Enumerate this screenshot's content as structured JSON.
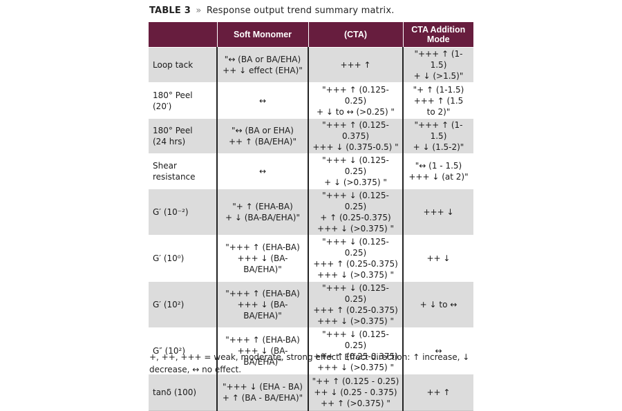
{
  "caption": {
    "label": "TABLE 3",
    "separator": "»",
    "text": "Response output trend summary matrix."
  },
  "table": {
    "headers": [
      "",
      "Soft Monomer",
      "(CTA)",
      "CTA Addition Mode"
    ],
    "rows": [
      {
        "label": "Loop tack",
        "soft_monomer": "\"↔ (BA or BA/EHA)\n++ ↓ effect (EHA)\"",
        "cta": "+++ ↑",
        "mode": "\"+++ ↑  (1-1.5)\n+ ↓ (>1.5)\""
      },
      {
        "label": "180° Peel (20′)",
        "soft_monomer": "↔",
        "cta": "\"+++  ↑ (0.125-0.25)\n+ ↓ to ↔ (>0.25) \"",
        "mode": "\"+ ↑ (1-1.5)\n+++ ↑ (1.5\nto 2)\""
      },
      {
        "label": "180° Peel\n(24 hrs)",
        "soft_monomer": "\"↔ (BA or EHA)\n++ ↑ (BA/EHA)\"",
        "cta": "\"+++ ↑ (0.125-0.375)\n+++ ↓  (0.375-0.5) \"",
        "mode": "\"+++ ↑ (1-1.5)\n+ ↓ (1.5-2)\""
      },
      {
        "label": "Shear\nresistance",
        "soft_monomer": "↔",
        "cta": "\"+++ ↓ (0.125-0.25)\n+ ↓ (>0.375) \"",
        "mode": "\"↔ (1 - 1.5)\n+++ ↓  (at 2)\""
      },
      {
        "label": "G′ (10⁻²)",
        "soft_monomer": "\"+ ↑ (EHA-BA)\n+ ↓ (BA-BA/EHA)\"",
        "cta": "\"+++ ↓ (0.125-0.25)\n+ ↑ (0.25-0.375)\n+++ ↓ (>0.375) \"",
        "mode": "+++ ↓"
      },
      {
        "label": "G′ (10⁰)",
        "soft_monomer": "\"+++ ↑ (EHA-BA)\n+++ ↓ (BA-BA/EHA)\"",
        "cta": "\"+++ ↓ (0.125-0.25)\n+++ ↑ (0.25-0.375)\n+++ ↓ (>0.375) \"",
        "mode": "++ ↓"
      },
      {
        "label": "G′ (10²)",
        "soft_monomer": "\"+++ ↑ (EHA-BA)\n+++ ↓ (BA-BA/EHA)\"",
        "cta": "\"+++ ↓ (0.125-0.25)\n+++ ↑ (0.25-0.375)\n+++ ↓ (>0.375) \"",
        "mode": "+ ↓ to  ↔"
      },
      {
        "label": "G″ (10²)",
        "soft_monomer": "\"+++ ↑ (EHA-BA)\n+++ ↓ (BA-BA/EHA)\"",
        "cta": "\"+++ ↓ (0.125-0.25)\n+++ ↑ (0.25-0.375)\n+++ ↓ (>0.375) \"",
        "mode": "↔"
      },
      {
        "label": "tanδ (100)",
        "soft_monomer": "\"+++ ↓ (EHA - BA)\n+ ↑ (BA - BA/EHA)\"",
        "cta": "\"++ ↑ (0.125 - 0.25)\n++ ↓ (0.25 - 0.375)\n++ ↑ (>0.375) \"",
        "mode": "++ ↑"
      }
    ]
  },
  "footnote": "+, ++, +++ = weak, moderate, strong effect. Effect direction: ↑ increase, ↓ decrease, ↔ no effect.",
  "colors": {
    "header_bg": "#671d3e",
    "row_shade": "#dcdcdc"
  }
}
